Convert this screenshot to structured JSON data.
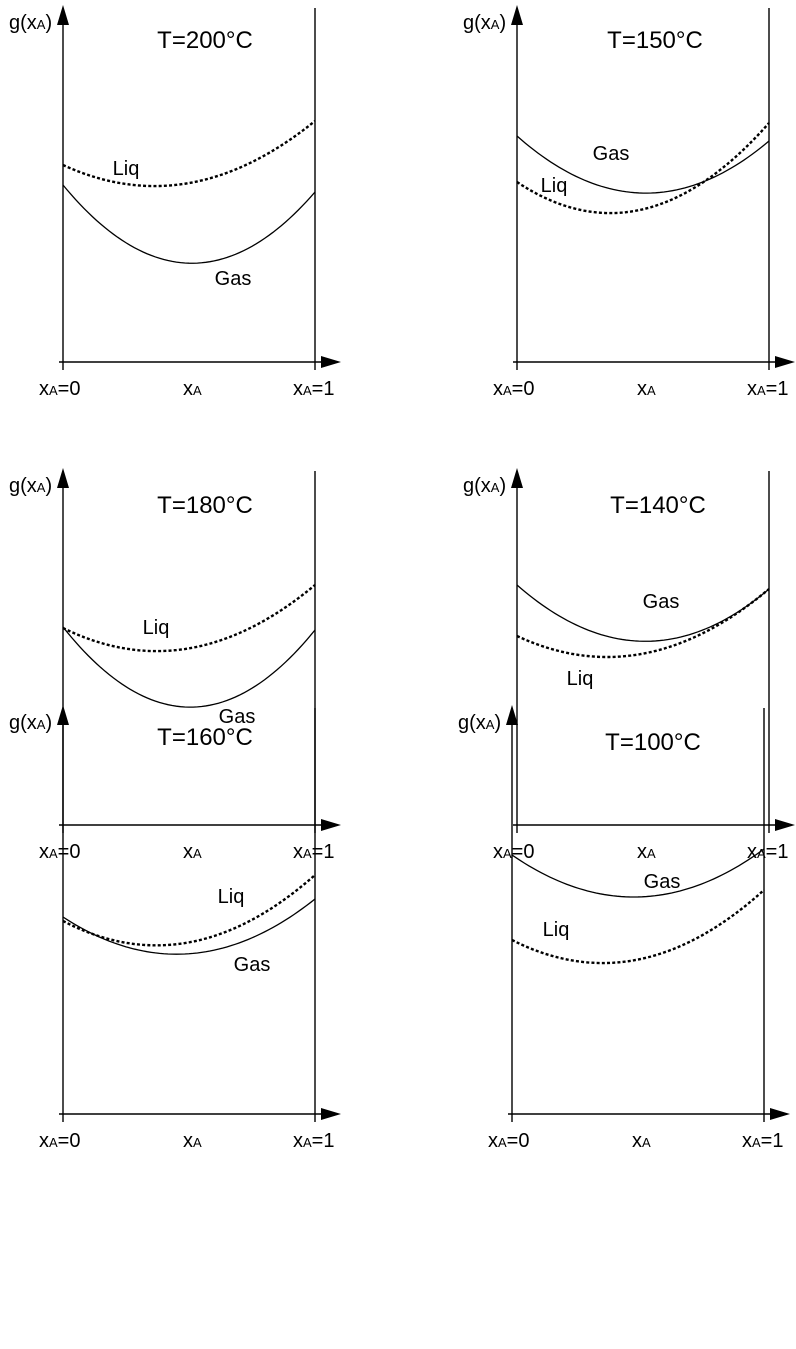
{
  "y_label": {
    "main": "g(x",
    "sub": "A",
    "close": ")"
  },
  "x_labels": {
    "left": {
      "main": "x",
      "sub": "A",
      "rest": "=0"
    },
    "mid": {
      "main": "x",
      "sub": "A"
    },
    "right": {
      "main": "x",
      "sub": "A",
      "rest": "=1"
    }
  },
  "panels": [
    {
      "title": "T=200°C",
      "gas_label": "Gas",
      "liq_label": "Liq"
    },
    {
      "title": "T=150°C",
      "gas_label": "Gas",
      "liq_label": "Liq"
    },
    {
      "title": "T=180°C",
      "gas_label": "Gas",
      "liq_label": "Liq"
    },
    {
      "title": "T=140°C",
      "gas_label": "Gas",
      "liq_label": "Liq"
    },
    {
      "title": "T=160°C",
      "gas_label": "Gas",
      "liq_label": "Liq"
    },
    {
      "title": "T=100°C",
      "gas_label": "Gas",
      "liq_label": "Liq"
    }
  ],
  "colors": {
    "line": "#000000",
    "background": "#ffffff"
  }
}
